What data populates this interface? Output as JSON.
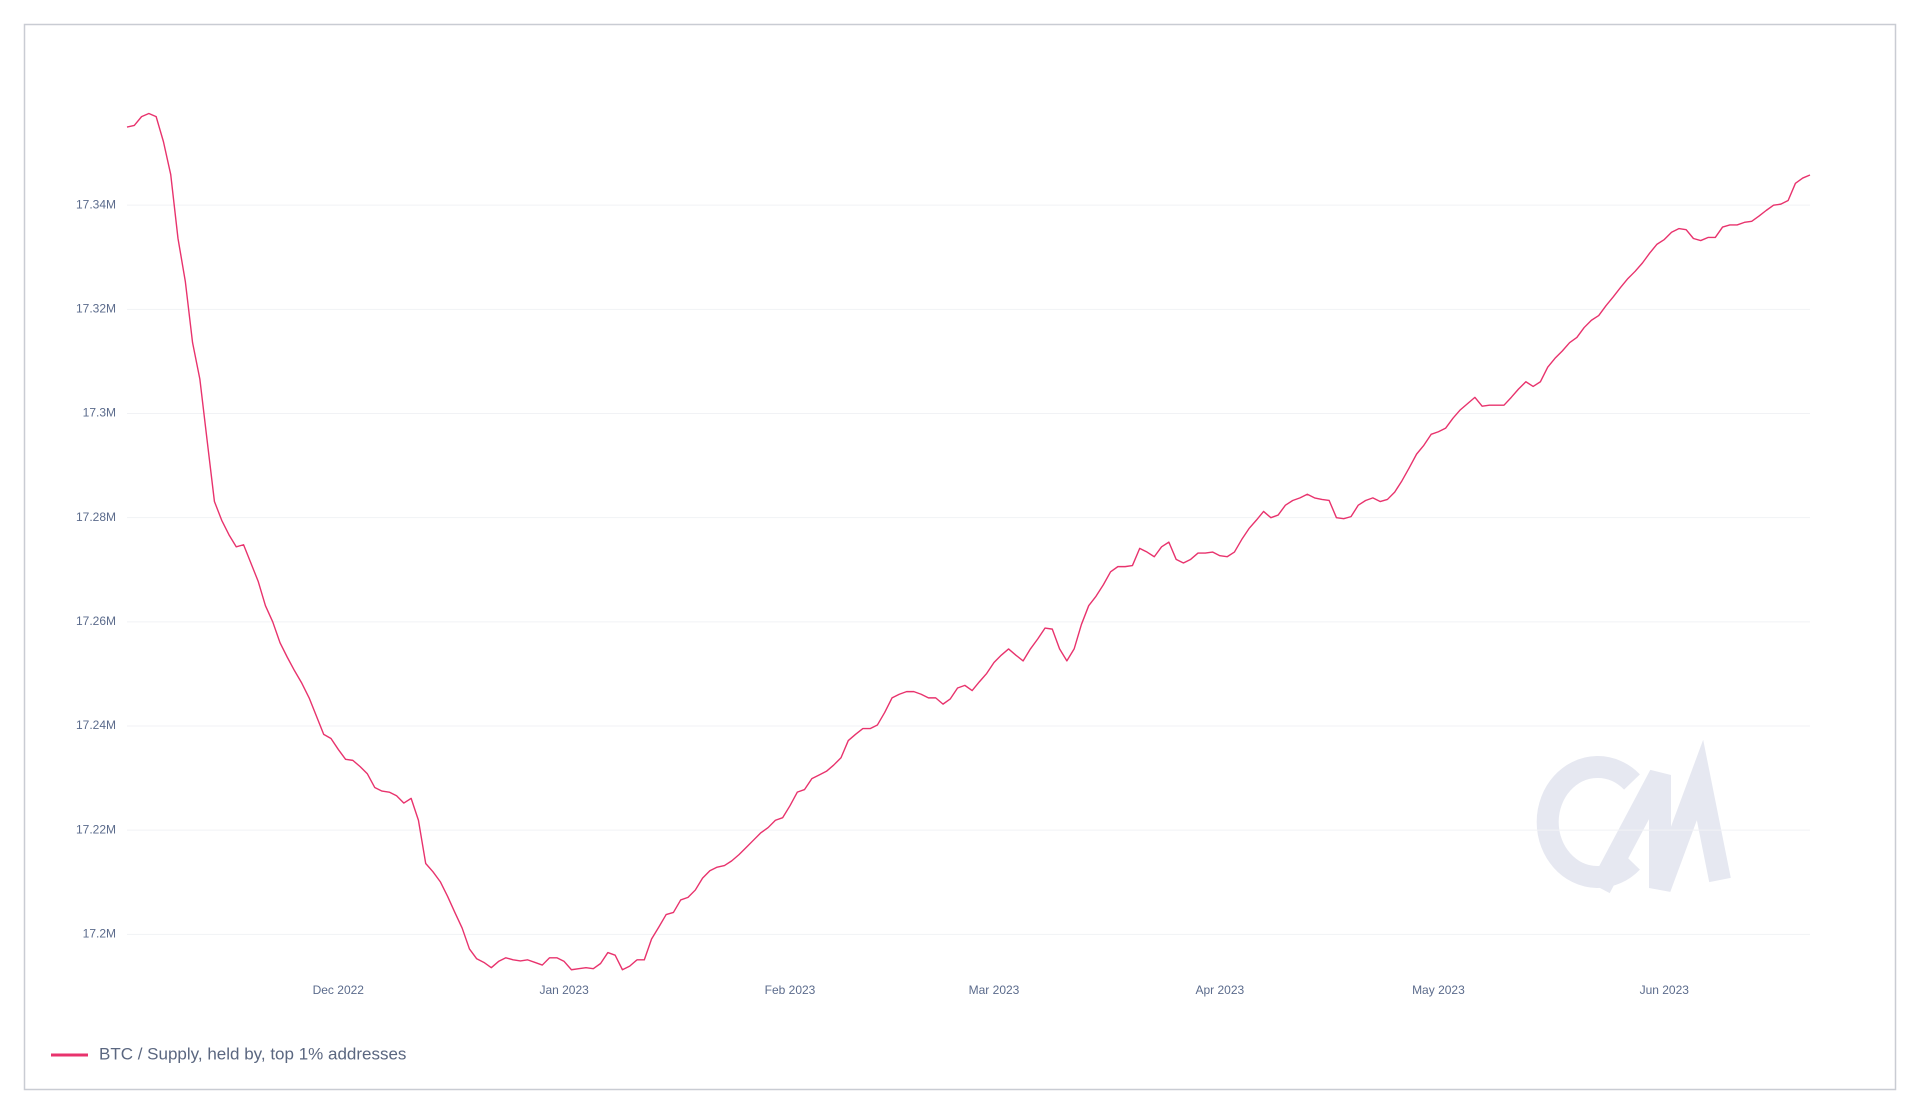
{
  "chart_data": {
    "type": "line",
    "categories": [
      null,
      null,
      null,
      null,
      null,
      null,
      null,
      null,
      null,
      null,
      null,
      null,
      null,
      null,
      null,
      null,
      null,
      null,
      null,
      null,
      null,
      null,
      null,
      null,
      null,
      null,
      null,
      null,
      null,
      "Dec 2022",
      null,
      null,
      null,
      null,
      null,
      null,
      null,
      null,
      null,
      null,
      null,
      null,
      null,
      null,
      null,
      null,
      null,
      null,
      null,
      null,
      null,
      null,
      null,
      null,
      null,
      null,
      null,
      null,
      null,
      null,
      "Jan 2023",
      null,
      null,
      null,
      null,
      null,
      null,
      null,
      null,
      null,
      null,
      null,
      null,
      null,
      null,
      null,
      null,
      null,
      null,
      null,
      null,
      null,
      null,
      null,
      null,
      null,
      null,
      null,
      null,
      null,
      null,
      "Feb 2023",
      null,
      null,
      null,
      null,
      null,
      null,
      null,
      null,
      null,
      null,
      null,
      null,
      null,
      null,
      null,
      null,
      null,
      null,
      null,
      null,
      null,
      null,
      null,
      null,
      null,
      null,
      null,
      "Mar 2023",
      null,
      null,
      null,
      null,
      null,
      null,
      null,
      null,
      null,
      null,
      null,
      null,
      null,
      null,
      null,
      null,
      null,
      null,
      null,
      null,
      null,
      null,
      null,
      null,
      null,
      null,
      null,
      null,
      null,
      null,
      "Apr 2023",
      null,
      null,
      null,
      null,
      null,
      null,
      null,
      null,
      null,
      null,
      null,
      null,
      null,
      null,
      null,
      null,
      null,
      null,
      null,
      null,
      null,
      null,
      null,
      null,
      null,
      null,
      null,
      null,
      null,
      "May 2023",
      null,
      null,
      null,
      null,
      null,
      null,
      null,
      null,
      null,
      null,
      null,
      null,
      null,
      null,
      null,
      null,
      null,
      null,
      null,
      null,
      null,
      null,
      null,
      null,
      null,
      null,
      null,
      null,
      null,
      null,
      "Jun 2023",
      null,
      null,
      null,
      null,
      null,
      null,
      null,
      null,
      null,
      null,
      null,
      null,
      null,
      null,
      null,
      null,
      null,
      null,
      null,
      null
    ],
    "series": [
      {
        "name": "BTC / Supply, held by, top 1% addresses",
        "color": "#e8336d",
        "values": [
          17355000,
          17355300,
          17357000,
          17357600,
          17357000,
          17352200,
          17345900,
          17333600,
          17325400,
          17313600,
          17306600,
          17294800,
          17283100,
          17279500,
          17276700,
          17274400,
          17274800,
          17271300,
          17267800,
          17263100,
          17260000,
          17256000,
          17253200,
          17250600,
          17248200,
          17245400,
          17241900,
          17238400,
          17237600,
          17235500,
          17233600,
          17233400,
          17232200,
          17230800,
          17228200,
          17227500,
          17227300,
          17226600,
          17225200,
          17226100,
          17221900,
          17213600,
          17212000,
          17210100,
          17207300,
          17204200,
          17201200,
          17197200,
          17195300,
          17194600,
          17193600,
          17194800,
          17195500,
          17195100,
          17194900,
          17195100,
          17194600,
          17194100,
          17195500,
          17195500,
          17194800,
          17193200,
          17193400,
          17193600,
          17193400,
          17194400,
          17196500,
          17196000,
          17193200,
          17193900,
          17195100,
          17195100,
          17199100,
          17201400,
          17203800,
          17204200,
          17206600,
          17207100,
          17208500,
          17210800,
          17212200,
          17212900,
          17213200,
          17214100,
          17215300,
          17216700,
          17218100,
          17219500,
          17220500,
          17221900,
          17222400,
          17224700,
          17227300,
          17227800,
          17229900,
          17230600,
          17231300,
          17232500,
          17233900,
          17237200,
          17238400,
          17239500,
          17239500,
          17240200,
          17242600,
          17245400,
          17246100,
          17246600,
          17246600,
          17246100,
          17245400,
          17245400,
          17244200,
          17245200,
          17247300,
          17247800,
          17246800,
          17248500,
          17250100,
          17252200,
          17253600,
          17254800,
          17253600,
          17252500,
          17254800,
          17256700,
          17258800,
          17258600,
          17254800,
          17252500,
          17254800,
          17259500,
          17263100,
          17264900,
          17267100,
          17269600,
          17270600,
          17270600,
          17270800,
          17274100,
          17273400,
          17272500,
          17274400,
          17275300,
          17272000,
          17271300,
          17272000,
          17273200,
          17273200,
          17273400,
          17272700,
          17272500,
          17273400,
          17275800,
          17277900,
          17279500,
          17281200,
          17280000,
          17280500,
          17282400,
          17283300,
          17283800,
          17284500,
          17283800,
          17283500,
          17283300,
          17280000,
          17279800,
          17280200,
          17282400,
          17283300,
          17283800,
          17283100,
          17283500,
          17284900,
          17287100,
          17289600,
          17292200,
          17293900,
          17296000,
          17296500,
          17297200,
          17299100,
          17300700,
          17301900,
          17303100,
          17301400,
          17301600,
          17301600,
          17301600,
          17303100,
          17304700,
          17306100,
          17305200,
          17306100,
          17308900,
          17310600,
          17312000,
          17313600,
          17314600,
          17316500,
          17317900,
          17318800,
          17320700,
          17322400,
          17324200,
          17325900,
          17327300,
          17328900,
          17330800,
          17332500,
          17333400,
          17334800,
          17335500,
          17335300,
          17333600,
          17333200,
          17333800,
          17333800,
          17335800,
          17336200,
          17336200,
          17336700,
          17336900,
          17337900,
          17339000,
          17340000,
          17340200,
          17340900,
          17344200,
          17345200,
          17345800
        ]
      }
    ],
    "ylim": [
      17192000,
      17360000
    ],
    "yticks": [
      {
        "value": 17200000,
        "label": "17.2M"
      },
      {
        "value": 17220000,
        "label": "17.22M"
      },
      {
        "value": 17240000,
        "label": "17.24M"
      },
      {
        "value": 17260000,
        "label": "17.26M"
      },
      {
        "value": 17280000,
        "label": "17.28M"
      },
      {
        "value": 17300000,
        "label": "17.3M"
      },
      {
        "value": 17320000,
        "label": "17.32M"
      },
      {
        "value": 17340000,
        "label": "17.34M"
      }
    ],
    "grid": true,
    "legend": "bottom-left"
  }
}
